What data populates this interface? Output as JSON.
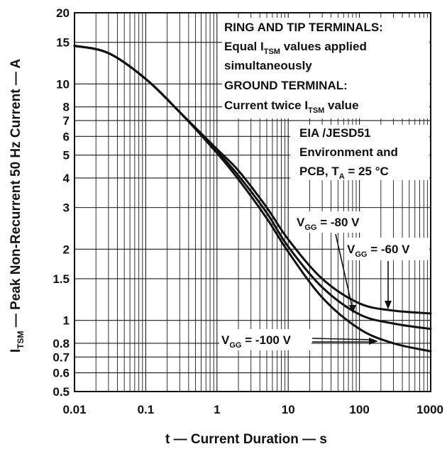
{
  "chart_data": {
    "type": "line",
    "xscale": "log",
    "yscale": "log",
    "xlim": [
      0.01,
      1000
    ],
    "ylim": [
      0.5,
      20
    ],
    "grid": true,
    "xlabel": "t — Current Duration — s",
    "ylabel": {
      "pre": "I",
      "sub": "TSM",
      "post": " — Peak Non-Recurrent 50 Hz Current — A"
    },
    "x_ticks": [
      {
        "value": 0.01,
        "label": "0.01"
      },
      {
        "value": 0.1,
        "label": "0.1"
      },
      {
        "value": 1,
        "label": "1"
      },
      {
        "value": 10,
        "label": "10"
      },
      {
        "value": 100,
        "label": "100"
      },
      {
        "value": 1000,
        "label": "1000"
      }
    ],
    "y_ticks": [
      {
        "value": 0.5,
        "label": "0.5"
      },
      {
        "value": 0.6,
        "label": "0.6"
      },
      {
        "value": 0.7,
        "label": "0.7"
      },
      {
        "value": 0.8,
        "label": "0.8"
      },
      {
        "value": 1,
        "label": "1"
      },
      {
        "value": 1.5,
        "label": "1.5"
      },
      {
        "value": 2,
        "label": "2"
      },
      {
        "value": 3,
        "label": "3"
      },
      {
        "value": 4,
        "label": "4"
      },
      {
        "value": 5,
        "label": "5"
      },
      {
        "value": 6,
        "label": "6"
      },
      {
        "value": 7,
        "label": "7"
      },
      {
        "value": 8,
        "label": "8"
      },
      {
        "value": 10,
        "label": "10"
      },
      {
        "value": 15,
        "label": "15"
      },
      {
        "value": 20,
        "label": "20"
      }
    ],
    "y_gridlines": [
      0.5,
      0.6,
      0.7,
      0.8,
      1,
      1.5,
      2,
      3,
      4,
      5,
      6,
      7,
      8,
      10,
      15,
      20
    ],
    "series": [
      {
        "vgg_label": {
          "pre": "V",
          "sub": "GG",
          "post": " = -80 V"
        },
        "x": [
          0.01,
          0.03,
          0.1,
          0.3,
          1,
          2,
          5,
          10,
          30,
          100,
          300,
          1000
        ],
        "y": [
          14.5,
          13.5,
          10.5,
          7.6,
          5.3,
          4.3,
          3.0,
          2.2,
          1.5,
          1.18,
          1.1,
          1.07
        ]
      },
      {
        "vgg_label": {
          "pre": "V",
          "sub": "GG",
          "post": " = -60 V"
        },
        "x": [
          0.01,
          0.03,
          0.1,
          0.3,
          1,
          2,
          5,
          10,
          30,
          100,
          300,
          1000
        ],
        "y": [
          14.5,
          13.5,
          10.5,
          7.6,
          5.2,
          4.1,
          2.85,
          2.05,
          1.38,
          1.06,
          0.97,
          0.92
        ]
      },
      {
        "vgg_label": {
          "pre": "V",
          "sub": "GG",
          "post": " = -100 V"
        },
        "x": [
          0.01,
          0.03,
          0.1,
          0.3,
          1,
          2,
          5,
          10,
          30,
          100,
          300,
          1000
        ],
        "y": [
          14.5,
          13.5,
          10.5,
          7.6,
          5.1,
          3.95,
          2.7,
          1.95,
          1.25,
          0.92,
          0.8,
          0.74
        ]
      }
    ],
    "annotations": {
      "ring_tip_title": "RING AND TIP TERMINALS:",
      "equal_line": {
        "pre": "Equal I",
        "sub": "TSM",
        "post": " values applied"
      },
      "simultaneously": "simultaneously",
      "ground_title": "GROUND TERMINAL:",
      "twice_line": {
        "pre": "Current twice I",
        "sub": "TSM",
        "post": " value"
      },
      "eia": "EIA /JESD51",
      "environment": "Environment and",
      "pcb": {
        "pre": "PCB, T",
        "sub": "A",
        "post": " = 25 °C"
      }
    }
  }
}
